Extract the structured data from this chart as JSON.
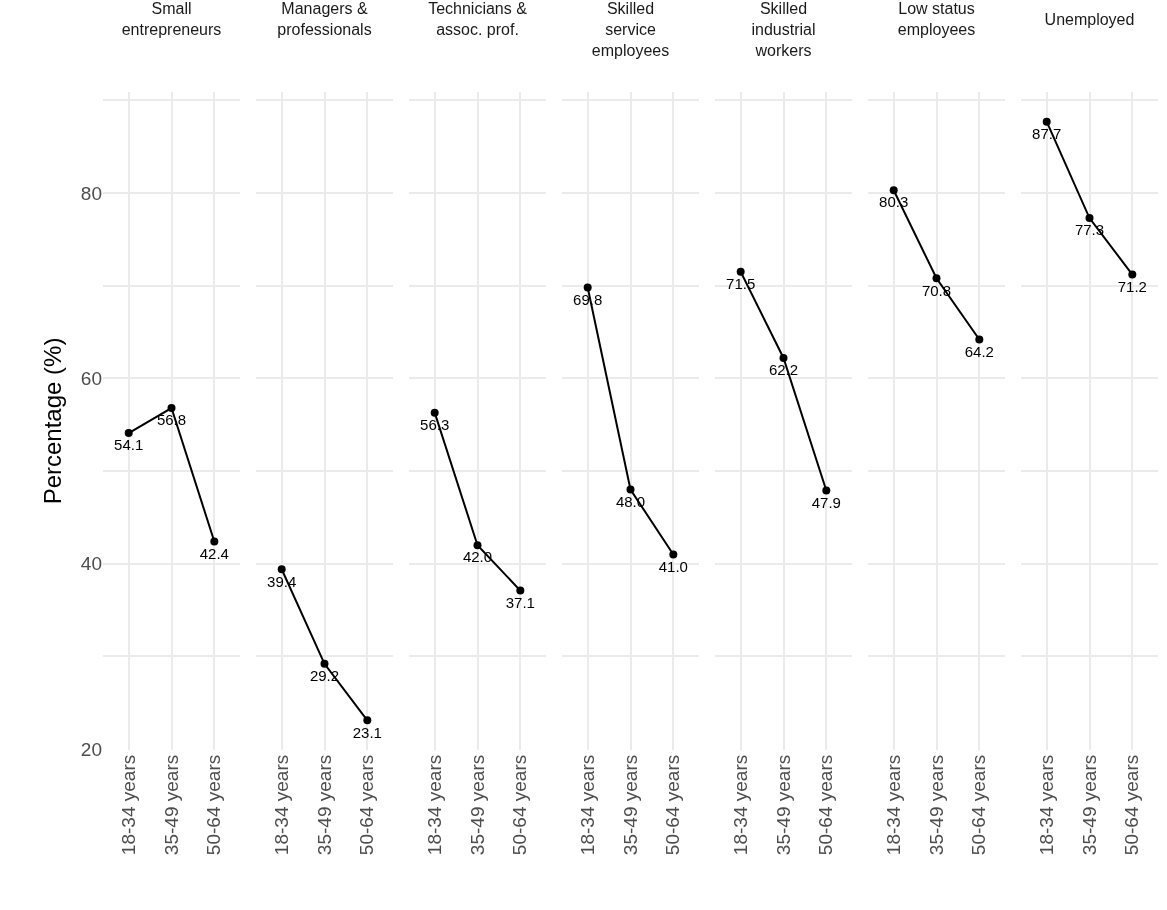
{
  "chart_data": [
    {
      "type": "line",
      "title": "Small entrepreneurs",
      "ylabel": "Percentage (%)",
      "categories": [
        "18-34 years",
        "35-49 years",
        "50-64 years"
      ],
      "values": [
        54.1,
        56.8,
        42.4
      ],
      "value_labels": [
        "54.1",
        "56.8",
        "42.4"
      ],
      "color": "#000000",
      "marker": "circle",
      "line_style": "solid",
      "grid": true,
      "ylim": [
        19.9,
        90.9
      ],
      "yticks": [
        20,
        {
          "value": 30,
          "label": null
        },
        40,
        {
          "value": 50,
          "label": null
        },
        60,
        {
          "value": 70,
          "label": null
        },
        80,
        {
          "value": 90,
          "label": null
        }
      ]
    },
    {
      "type": "line",
      "title": "Managers & professionals",
      "categories": [
        "18-34 years",
        "35-49 years",
        "50-64 years"
      ],
      "values": [
        39.4,
        29.2,
        23.1
      ],
      "value_labels": [
        "39.4",
        "29.2",
        "23.1"
      ],
      "color": "#000000",
      "marker": "circle",
      "line_style": "solid",
      "grid": true,
      "tick_labels": "x",
      "ylim": [
        19.9,
        90.9
      ],
      "yticks": [
        20,
        {
          "value": 30,
          "label": null
        },
        40,
        {
          "value": 50,
          "label": null
        },
        60,
        {
          "value": 70,
          "label": null
        },
        80,
        {
          "value": 90,
          "label": null
        }
      ]
    },
    {
      "type": "line",
      "title": "Technicians & assoc. prof.",
      "categories": [
        "18-34 years",
        "35-49 years",
        "50-64 years"
      ],
      "values": [
        56.3,
        42.0,
        37.1
      ],
      "value_labels": [
        "56.3",
        "42.0",
        "37.1"
      ],
      "color": "#000000",
      "marker": "circle",
      "line_style": "solid",
      "grid": true,
      "tick_labels": "x",
      "ylim": [
        19.9,
        90.9
      ],
      "yticks": [
        20,
        {
          "value": 30,
          "label": null
        },
        40,
        {
          "value": 50,
          "label": null
        },
        60,
        {
          "value": 70,
          "label": null
        },
        80,
        {
          "value": 90,
          "label": null
        }
      ]
    },
    {
      "type": "line",
      "title": "Skilled service employees",
      "categories": [
        "18-34 years",
        "35-49 years",
        "50-64 years"
      ],
      "values": [
        69.8,
        48.0,
        41.0
      ],
      "value_labels": [
        "69.8",
        "48.0",
        "41.0"
      ],
      "color": "#000000",
      "marker": "circle",
      "line_style": "solid",
      "grid": true,
      "tick_labels": "x",
      "ylim": [
        19.9,
        90.9
      ],
      "yticks": [
        20,
        {
          "value": 30,
          "label": null
        },
        40,
        {
          "value": 50,
          "label": null
        },
        60,
        {
          "value": 70,
          "label": null
        },
        80,
        {
          "value": 90,
          "label": null
        }
      ]
    },
    {
      "type": "line",
      "title": "Skilled industrial workers",
      "categories": [
        "18-34 years",
        "35-49 years",
        "50-64 years"
      ],
      "values": [
        71.5,
        62.2,
        47.9
      ],
      "value_labels": [
        "71.5",
        "62.2",
        "47.9"
      ],
      "color": "#000000",
      "marker": "circle",
      "line_style": "solid",
      "grid": true,
      "tick_labels": "x",
      "ylim": [
        19.9,
        90.9
      ],
      "yticks": [
        20,
        {
          "value": 30,
          "label": null
        },
        40,
        {
          "value": 50,
          "label": null
        },
        60,
        {
          "value": 70,
          "label": null
        },
        80,
        {
          "value": 90,
          "label": null
        }
      ]
    },
    {
      "type": "line",
      "title": "Low status employees",
      "categories": [
        "18-34 years",
        "35-49 years",
        "50-64 years"
      ],
      "values": [
        80.3,
        70.8,
        64.2
      ],
      "value_labels": [
        "80.3",
        "70.8",
        "64.2"
      ],
      "color": "#000000",
      "marker": "circle",
      "line_style": "solid",
      "grid": true,
      "tick_labels": "x",
      "ylim": [
        19.9,
        90.9
      ],
      "yticks": [
        20,
        {
          "value": 30,
          "label": null
        },
        40,
        {
          "value": 50,
          "label": null
        },
        60,
        {
          "value": 70,
          "label": null
        },
        80,
        {
          "value": 90,
          "label": null
        }
      ]
    },
    {
      "type": "line",
      "title": "Unemployed",
      "categories": [
        "18-34 years",
        "35-49 years",
        "50-64 years"
      ],
      "values": [
        87.7,
        77.3,
        71.2
      ],
      "value_labels": [
        "87.7",
        "77.3",
        "71.2"
      ],
      "color": "#000000",
      "marker": "circle",
      "line_style": "solid",
      "grid": true,
      "tick_labels": "x",
      "ylim": [
        19.9,
        90.9
      ],
      "yticks": [
        20,
        {
          "value": 30,
          "label": null
        },
        40,
        {
          "value": 50,
          "label": null
        },
        60,
        {
          "value": 70,
          "label": null
        },
        80,
        {
          "value": 90,
          "label": null
        }
      ]
    }
  ]
}
